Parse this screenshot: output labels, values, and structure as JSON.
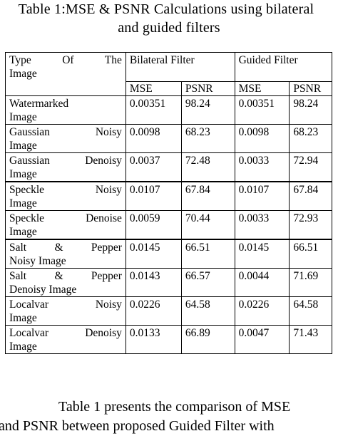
{
  "caption": {
    "line1": "Table 1:MSE & PSNR Calculations  using bilateral",
    "line2": "and guided filters"
  },
  "table": {
    "corner_line1": "Type    Of    The",
    "corner_line2": "Image",
    "bilateral_label": "Bilateral Filter",
    "guided_label": "Guided Filter",
    "sub_headers": [
      "MSE",
      "PSNR",
      "MSE",
      "PSNR"
    ],
    "rows": [
      {
        "l1": "Watermarked",
        "l2": "Image",
        "b_mse": "0.00351",
        "b_psnr": "98.24",
        "g_mse": "0.00351",
        "g_psnr": "98.24"
      },
      {
        "l1": "Gaussian      Noisy",
        "l2": "Image",
        "b_mse": "0.0098",
        "b_psnr": "68.23",
        "g_mse": "0.0098",
        "g_psnr": "68.23"
      },
      {
        "l1": "Gaussian  Denoisy",
        "l2": "Image",
        "b_mse": "0.0037",
        "b_psnr": "72.48",
        "g_mse": "0.0033",
        "g_psnr": "72.94"
      },
      {
        "l1": "Speckle        Noisy",
        "l2": "Image",
        "b_mse": "0.0107",
        "b_psnr": "67.84",
        "g_mse": "0.0107",
        "g_psnr": "67.84"
      },
      {
        "l1": "Speckle      Denoise",
        "l2": "Image",
        "b_mse": "0.0059",
        "b_psnr": "70.44",
        "g_mse": "0.0033",
        "g_psnr": "72.93"
      },
      {
        "l1": "Salt     &     Pepper",
        "l2": "Noisy Image",
        "b_mse": "0.0145",
        "b_psnr": "66.51",
        "g_mse": "0.0145",
        "g_psnr": "66.51"
      },
      {
        "l1": "Salt     &     Pepper",
        "l2": "Denoisy Image",
        "b_mse": "0.0143",
        "b_psnr": "66.57",
        "g_mse": "0.0044",
        "g_psnr": "71.69"
      },
      {
        "l1": "Localvar       Noisy",
        "l2": "Image",
        "b_mse": "0.0226",
        "b_psnr": "64.58",
        "g_mse": "0.0226",
        "g_psnr": "64.58"
      },
      {
        "l1": "Localvar  Denoisy",
        "l2": "Image",
        "b_mse": "0.0133",
        "b_psnr": "66.89",
        "g_mse": "0.0047",
        "g_psnr": "71.43"
      }
    ]
  },
  "body": {
    "line1": "Table 1 presents the comparison of MSE",
    "line2": "and PSNR   between proposed Guided Filter with"
  }
}
